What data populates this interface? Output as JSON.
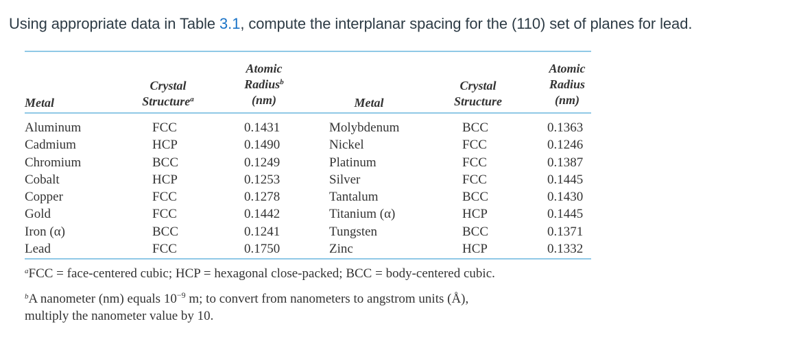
{
  "question": {
    "text_before": "Using appropriate data in Table ",
    "link_text": "3.1",
    "text_after": ", compute the interplanar spacing for the (110) set of planes for lead."
  },
  "table": {
    "headers": {
      "metal_left": "Metal",
      "structure_left_l1": "Crystal",
      "structure_left_l2": "Structure",
      "structure_left_mark": "a",
      "radius_left_l1": "Atomic",
      "radius_left_l2": "Radius",
      "radius_left_mark": "b",
      "radius_left_l3": "(nm)",
      "metal_right": "Metal",
      "structure_right_l1": "Crystal",
      "structure_right_l2": "Structure",
      "radius_right_l1": "Atomic",
      "radius_right_l2": "Radius",
      "radius_right_l3": "(nm)"
    },
    "left_rows": [
      {
        "metal": "Aluminum",
        "structure": "FCC",
        "radius": "0.1431"
      },
      {
        "metal": "Cadmium",
        "structure": "HCP",
        "radius": "0.1490"
      },
      {
        "metal": "Chromium",
        "structure": "BCC",
        "radius": "0.1249"
      },
      {
        "metal": "Cobalt",
        "structure": "HCP",
        "radius": "0.1253"
      },
      {
        "metal": "Copper",
        "structure": "FCC",
        "radius": "0.1278"
      },
      {
        "metal": "Gold",
        "structure": "FCC",
        "radius": "0.1442"
      },
      {
        "metal": "Iron (α)",
        "structure": "BCC",
        "radius": "0.1241"
      },
      {
        "metal": "Lead",
        "structure": "FCC",
        "radius": "0.1750"
      }
    ],
    "right_rows": [
      {
        "metal": "Molybdenum",
        "structure": "BCC",
        "radius": "0.1363"
      },
      {
        "metal": "Nickel",
        "structure": "FCC",
        "radius": "0.1246"
      },
      {
        "metal": "Platinum",
        "structure": "FCC",
        "radius": "0.1387"
      },
      {
        "metal": "Silver",
        "structure": "FCC",
        "radius": "0.1445"
      },
      {
        "metal": "Tantalum",
        "structure": "BCC",
        "radius": "0.1430"
      },
      {
        "metal": "Titanium (α)",
        "structure": "HCP",
        "radius": "0.1445"
      },
      {
        "metal": "Tungsten",
        "structure": "BCC",
        "radius": "0.1371"
      },
      {
        "metal": "Zinc",
        "structure": "HCP",
        "radius": "0.1332"
      }
    ]
  },
  "footnotes": {
    "a_mark": "a",
    "a_text": "FCC = face-centered cubic; HCP = hexagonal close-packed; BCC = body-centered cubic.",
    "b_mark": "b",
    "b_text_before": "A nanometer (nm) equals 10",
    "b_exponent": "−9",
    "b_text_after": " m; to convert from nanometers to angstrom units (Å),",
    "b_text_line2": "multiply the nanometer value by 10."
  }
}
